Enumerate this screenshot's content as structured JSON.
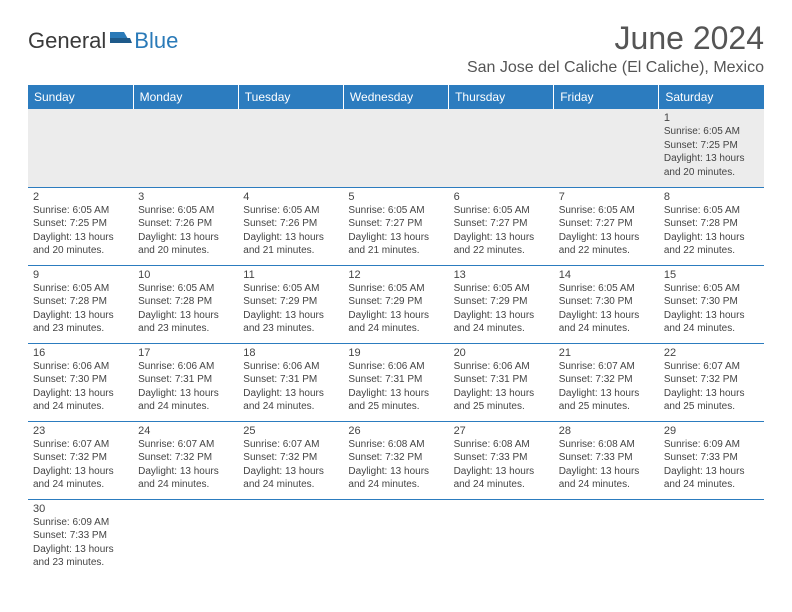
{
  "logo": {
    "text_dark": "General",
    "text_blue": "Blue"
  },
  "title": "June 2024",
  "location": "San Jose del Caliche (El Caliche), Mexico",
  "colors": {
    "header_bg": "#2c7cbf",
    "header_text": "#ffffff",
    "row_border": "#2c7cbf",
    "first_row_bg": "#ececec",
    "body_text": "#444444",
    "title_text": "#555555",
    "logo_dark": "#3a3a3a",
    "logo_blue": "#2a7ab8"
  },
  "day_headers": [
    "Sunday",
    "Monday",
    "Tuesday",
    "Wednesday",
    "Thursday",
    "Friday",
    "Saturday"
  ],
  "weeks": [
    [
      null,
      null,
      null,
      null,
      null,
      null,
      {
        "n": "1",
        "sr": "6:05 AM",
        "ss": "7:25 PM",
        "dl": "13 hours and 20 minutes."
      }
    ],
    [
      {
        "n": "2",
        "sr": "6:05 AM",
        "ss": "7:25 PM",
        "dl": "13 hours and 20 minutes."
      },
      {
        "n": "3",
        "sr": "6:05 AM",
        "ss": "7:26 PM",
        "dl": "13 hours and 20 minutes."
      },
      {
        "n": "4",
        "sr": "6:05 AM",
        "ss": "7:26 PM",
        "dl": "13 hours and 21 minutes."
      },
      {
        "n": "5",
        "sr": "6:05 AM",
        "ss": "7:27 PM",
        "dl": "13 hours and 21 minutes."
      },
      {
        "n": "6",
        "sr": "6:05 AM",
        "ss": "7:27 PM",
        "dl": "13 hours and 22 minutes."
      },
      {
        "n": "7",
        "sr": "6:05 AM",
        "ss": "7:27 PM",
        "dl": "13 hours and 22 minutes."
      },
      {
        "n": "8",
        "sr": "6:05 AM",
        "ss": "7:28 PM",
        "dl": "13 hours and 22 minutes."
      }
    ],
    [
      {
        "n": "9",
        "sr": "6:05 AM",
        "ss": "7:28 PM",
        "dl": "13 hours and 23 minutes."
      },
      {
        "n": "10",
        "sr": "6:05 AM",
        "ss": "7:28 PM",
        "dl": "13 hours and 23 minutes."
      },
      {
        "n": "11",
        "sr": "6:05 AM",
        "ss": "7:29 PM",
        "dl": "13 hours and 23 minutes."
      },
      {
        "n": "12",
        "sr": "6:05 AM",
        "ss": "7:29 PM",
        "dl": "13 hours and 24 minutes."
      },
      {
        "n": "13",
        "sr": "6:05 AM",
        "ss": "7:29 PM",
        "dl": "13 hours and 24 minutes."
      },
      {
        "n": "14",
        "sr": "6:05 AM",
        "ss": "7:30 PM",
        "dl": "13 hours and 24 minutes."
      },
      {
        "n": "15",
        "sr": "6:05 AM",
        "ss": "7:30 PM",
        "dl": "13 hours and 24 minutes."
      }
    ],
    [
      {
        "n": "16",
        "sr": "6:06 AM",
        "ss": "7:30 PM",
        "dl": "13 hours and 24 minutes."
      },
      {
        "n": "17",
        "sr": "6:06 AM",
        "ss": "7:31 PM",
        "dl": "13 hours and 24 minutes."
      },
      {
        "n": "18",
        "sr": "6:06 AM",
        "ss": "7:31 PM",
        "dl": "13 hours and 24 minutes."
      },
      {
        "n": "19",
        "sr": "6:06 AM",
        "ss": "7:31 PM",
        "dl": "13 hours and 25 minutes."
      },
      {
        "n": "20",
        "sr": "6:06 AM",
        "ss": "7:31 PM",
        "dl": "13 hours and 25 minutes."
      },
      {
        "n": "21",
        "sr": "6:07 AM",
        "ss": "7:32 PM",
        "dl": "13 hours and 25 minutes."
      },
      {
        "n": "22",
        "sr": "6:07 AM",
        "ss": "7:32 PM",
        "dl": "13 hours and 25 minutes."
      }
    ],
    [
      {
        "n": "23",
        "sr": "6:07 AM",
        "ss": "7:32 PM",
        "dl": "13 hours and 24 minutes."
      },
      {
        "n": "24",
        "sr": "6:07 AM",
        "ss": "7:32 PM",
        "dl": "13 hours and 24 minutes."
      },
      {
        "n": "25",
        "sr": "6:07 AM",
        "ss": "7:32 PM",
        "dl": "13 hours and 24 minutes."
      },
      {
        "n": "26",
        "sr": "6:08 AM",
        "ss": "7:32 PM",
        "dl": "13 hours and 24 minutes."
      },
      {
        "n": "27",
        "sr": "6:08 AM",
        "ss": "7:33 PM",
        "dl": "13 hours and 24 minutes."
      },
      {
        "n": "28",
        "sr": "6:08 AM",
        "ss": "7:33 PM",
        "dl": "13 hours and 24 minutes."
      },
      {
        "n": "29",
        "sr": "6:09 AM",
        "ss": "7:33 PM",
        "dl": "13 hours and 24 minutes."
      }
    ],
    [
      {
        "n": "30",
        "sr": "6:09 AM",
        "ss": "7:33 PM",
        "dl": "13 hours and 23 minutes."
      },
      null,
      null,
      null,
      null,
      null,
      null
    ]
  ],
  "labels": {
    "sunrise": "Sunrise: ",
    "sunset": "Sunset: ",
    "daylight": "Daylight: "
  }
}
